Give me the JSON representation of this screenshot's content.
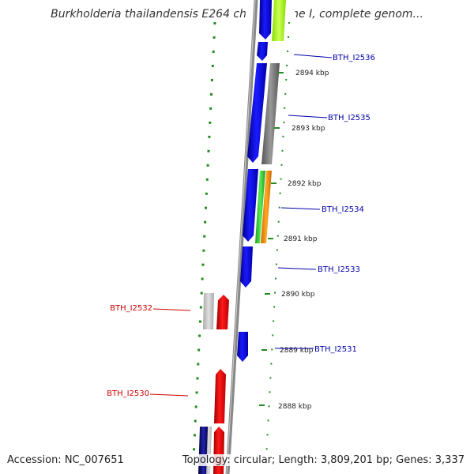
{
  "title": "Burkholderia thailandensis E264 chromosome I, complete genom...",
  "accession": "Accession: NC_007651",
  "summary": "Topology: circular; Length: 3,809,201 bp; Genes: 3,337",
  "colors": {
    "forward_gene": "#0000ee",
    "reverse_gene": "#ee0000",
    "forward_label": "#0000aa",
    "reverse_label": "#cc0000",
    "scale_tick": "#228b22",
    "backbone": "#888888"
  },
  "scale": [
    {
      "label": "2894 kbp"
    },
    {
      "label": "2893 kbp"
    },
    {
      "label": "2892 kbp"
    },
    {
      "label": "2891 kbp"
    },
    {
      "label": "2890 kbp"
    },
    {
      "label": "2889 kbp"
    },
    {
      "label": "2888 kbp"
    }
  ],
  "genes": {
    "forward": [
      {
        "name": "BTH_I2536"
      },
      {
        "name": "BTH_I2535"
      },
      {
        "name": "BTH_I2534"
      },
      {
        "name": "BTH_I2533"
      },
      {
        "name": "BTH_I2531"
      }
    ],
    "reverse": [
      {
        "name": "BTH_I2532"
      },
      {
        "name": "BTH_I2530"
      }
    ]
  }
}
